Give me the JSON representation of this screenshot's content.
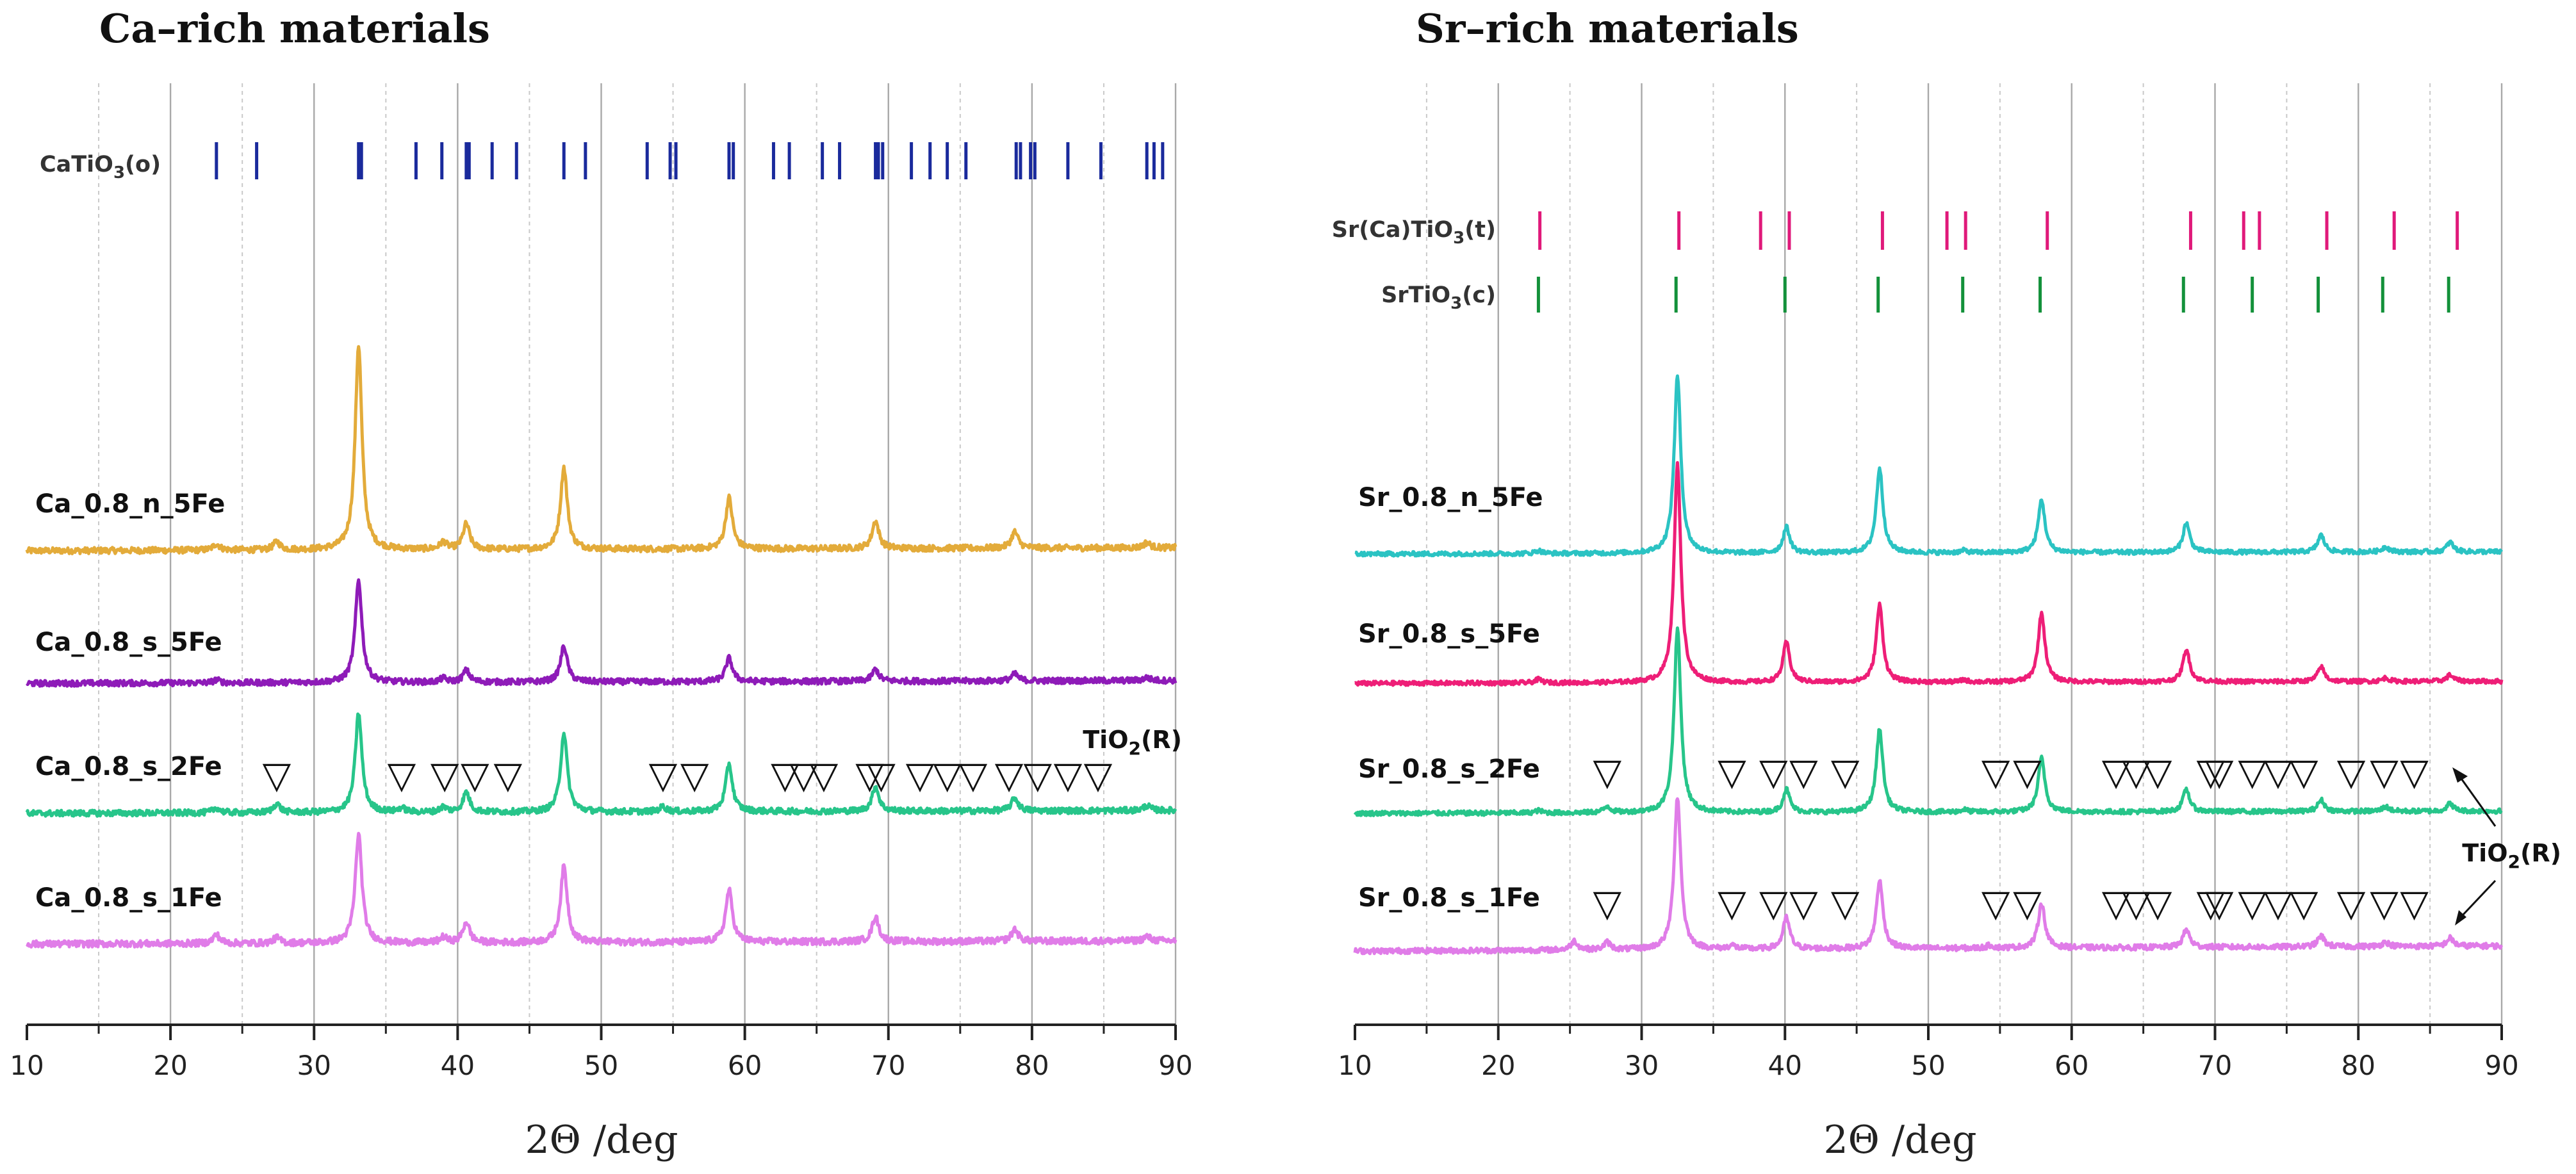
{
  "chart_data": [
    {
      "type": "line",
      "title": "Ca–rich materials",
      "xlabel": "2Θ /deg",
      "ylabel": "",
      "xlim": [
        10,
        90
      ],
      "xticks": [
        10,
        20,
        30,
        40,
        50,
        60,
        70,
        80,
        90
      ],
      "grid": true,
      "reference": {
        "label": "CaTiO3(o)",
        "label_base": "CaTiO",
        "label_sub": "3",
        "label_tail": "(o)",
        "color": "#1a2a9c",
        "positions": [
          23.2,
          26.0,
          33.1,
          33.3,
          37.1,
          38.9,
          40.6,
          40.8,
          42.4,
          44.1,
          47.4,
          48.9,
          53.2,
          54.8,
          55.2,
          58.9,
          59.2,
          62.0,
          63.1,
          65.4,
          66.6,
          69.1,
          69.3,
          69.6,
          71.6,
          72.9,
          74.1,
          75.4,
          78.9,
          79.2,
          79.9,
          80.2,
          82.5,
          84.8,
          88.0,
          88.5,
          89.1
        ]
      },
      "triangles": [
        27.4,
        36.1,
        39.1,
        41.2,
        43.5,
        54.3,
        56.5,
        62.8,
        64.1,
        65.5,
        68.7,
        69.5,
        72.2,
        74.1,
        75.9,
        78.4,
        80.4,
        82.5,
        84.6
      ],
      "annotation": {
        "text": "TiO",
        "sub": "2",
        "tail": "(R)",
        "x": 85.8
      },
      "series": [
        {
          "name": "Ca_0.8_n_5Fe",
          "color": "#e3ab3a",
          "peaks": [
            [
              23.2,
              0.06
            ],
            [
              27.4,
              0.08
            ],
            [
              33.1,
              2.0
            ],
            [
              39.0,
              0.07
            ],
            [
              40.6,
              0.25
            ],
            [
              47.4,
              0.8
            ],
            [
              58.9,
              0.5
            ],
            [
              69.1,
              0.27
            ],
            [
              78.8,
              0.16
            ],
            [
              88.0,
              0.05
            ]
          ]
        },
        {
          "name": "Ca_0.8_s_5Fe",
          "color": "#8e1bb8",
          "peaks": [
            [
              23.2,
              0.03
            ],
            [
              33.1,
              1.05
            ],
            [
              39.0,
              0.04
            ],
            [
              40.6,
              0.12
            ],
            [
              47.4,
              0.37
            ],
            [
              58.9,
              0.24
            ],
            [
              69.1,
              0.12
            ],
            [
              78.8,
              0.07
            ],
            [
              88.0,
              0.03
            ]
          ]
        },
        {
          "name": "Ca_0.8_s_2Fe",
          "color": "#27c58a",
          "peaks": [
            [
              23.2,
              0.05
            ],
            [
              27.4,
              0.09
            ],
            [
              33.1,
              1.0
            ],
            [
              36.1,
              0.04
            ],
            [
              39.0,
              0.05
            ],
            [
              40.6,
              0.2
            ],
            [
              47.4,
              0.8
            ],
            [
              54.3,
              0.05
            ],
            [
              58.9,
              0.48
            ],
            [
              69.1,
              0.25
            ],
            [
              78.8,
              0.13
            ],
            [
              88.0,
              0.05
            ]
          ]
        },
        {
          "name": "Ca_0.8_s_1Fe",
          "color": "#e07ce8",
          "peaks": [
            [
              23.2,
              0.08
            ],
            [
              27.4,
              0.05
            ],
            [
              33.1,
              1.0
            ],
            [
              39.0,
              0.05
            ],
            [
              40.6,
              0.19
            ],
            [
              47.4,
              0.7
            ],
            [
              58.9,
              0.48
            ],
            [
              69.1,
              0.23
            ],
            [
              78.8,
              0.11
            ],
            [
              88.0,
              0.04
            ]
          ]
        }
      ]
    },
    {
      "type": "line",
      "title": "Sr–rich materials",
      "xlabel": "2Θ /deg",
      "ylabel": "",
      "xlim": [
        10,
        90
      ],
      "xticks": [
        10,
        20,
        30,
        40,
        50,
        60,
        70,
        80,
        90
      ],
      "grid": true,
      "references": [
        {
          "label": "Sr(Ca)TiO3(t)",
          "label_base": "Sr(Ca)TiO",
          "label_sub": "3",
          "label_tail": "(t)",
          "color": "#e0197a",
          "positions": [
            22.9,
            32.6,
            38.3,
            40.3,
            46.8,
            51.3,
            52.6,
            58.3,
            68.3,
            72.0,
            73.1,
            77.8,
            82.5,
            86.9
          ]
        },
        {
          "label": "SrTiO3(c)",
          "label_base": "SrTiO",
          "label_sub": "3",
          "label_tail": "(c)",
          "color": "#13913a",
          "positions": [
            22.8,
            32.4,
            40.0,
            46.5,
            52.4,
            57.8,
            67.8,
            72.6,
            77.2,
            81.7,
            86.3
          ]
        }
      ],
      "triangles_upper": [
        27.6,
        36.3,
        39.2,
        41.3,
        44.2,
        54.7,
        56.9,
        63.1,
        64.5,
        66.0,
        69.7,
        70.3,
        72.6,
        74.4,
        76.2,
        79.5,
        81.8,
        83.9
      ],
      "triangles_lower": [
        27.6,
        36.3,
        39.2,
        41.3,
        44.2,
        54.7,
        56.9,
        63.1,
        64.5,
        66.0,
        69.7,
        70.3,
        72.6,
        74.4,
        76.2,
        79.5,
        81.8,
        83.9
      ],
      "annotation": {
        "text": "TiO",
        "sub": "2",
        "tail": "(R)"
      },
      "series": [
        {
          "name": "Sr_0.8_n_5Fe",
          "color": "#2bc3c3",
          "peaks": [
            [
              22.8,
              0.04
            ],
            [
              32.5,
              2.4
            ],
            [
              40.1,
              0.35
            ],
            [
              46.6,
              1.15
            ],
            [
              52.5,
              0.03
            ],
            [
              57.9,
              0.72
            ],
            [
              68.0,
              0.4
            ],
            [
              77.4,
              0.23
            ],
            [
              81.9,
              0.07
            ],
            [
              86.4,
              0.13
            ]
          ]
        },
        {
          "name": "Sr_0.8_s_5Fe",
          "color": "#ee1e77",
          "peaks": [
            [
              22.8,
              0.05
            ],
            [
              32.5,
              3.1
            ],
            [
              40.1,
              0.57
            ],
            [
              46.6,
              1.1
            ],
            [
              52.5,
              0.03
            ],
            [
              57.9,
              0.98
            ],
            [
              68.0,
              0.46
            ],
            [
              77.4,
              0.21
            ],
            [
              81.9,
              0.05
            ],
            [
              86.4,
              0.09
            ]
          ]
        },
        {
          "name": "Sr_0.8_s_2Fe",
          "color": "#27c58a",
          "peaks": [
            [
              22.8,
              0.03
            ],
            [
              27.6,
              0.08
            ],
            [
              32.5,
              2.4
            ],
            [
              40.1,
              0.3
            ],
            [
              46.6,
              1.08
            ],
            [
              52.5,
              0.03
            ],
            [
              57.9,
              0.7
            ],
            [
              68.0,
              0.29
            ],
            [
              77.4,
              0.15
            ],
            [
              81.9,
              0.06
            ],
            [
              86.4,
              0.1
            ]
          ]
        },
        {
          "name": "Sr_0.8_s_1Fe",
          "color": "#e07ce8",
          "peaks": [
            [
              25.3,
              0.1
            ],
            [
              27.6,
              0.08
            ],
            [
              32.5,
              1.7
            ],
            [
              36.3,
              0.04
            ],
            [
              40.1,
              0.35
            ],
            [
              46.6,
              0.76
            ],
            [
              54.3,
              0.03
            ],
            [
              57.9,
              0.5
            ],
            [
              68.0,
              0.2
            ],
            [
              77.4,
              0.12
            ],
            [
              81.9,
              0.05
            ],
            [
              86.4,
              0.09
            ]
          ]
        }
      ]
    }
  ]
}
